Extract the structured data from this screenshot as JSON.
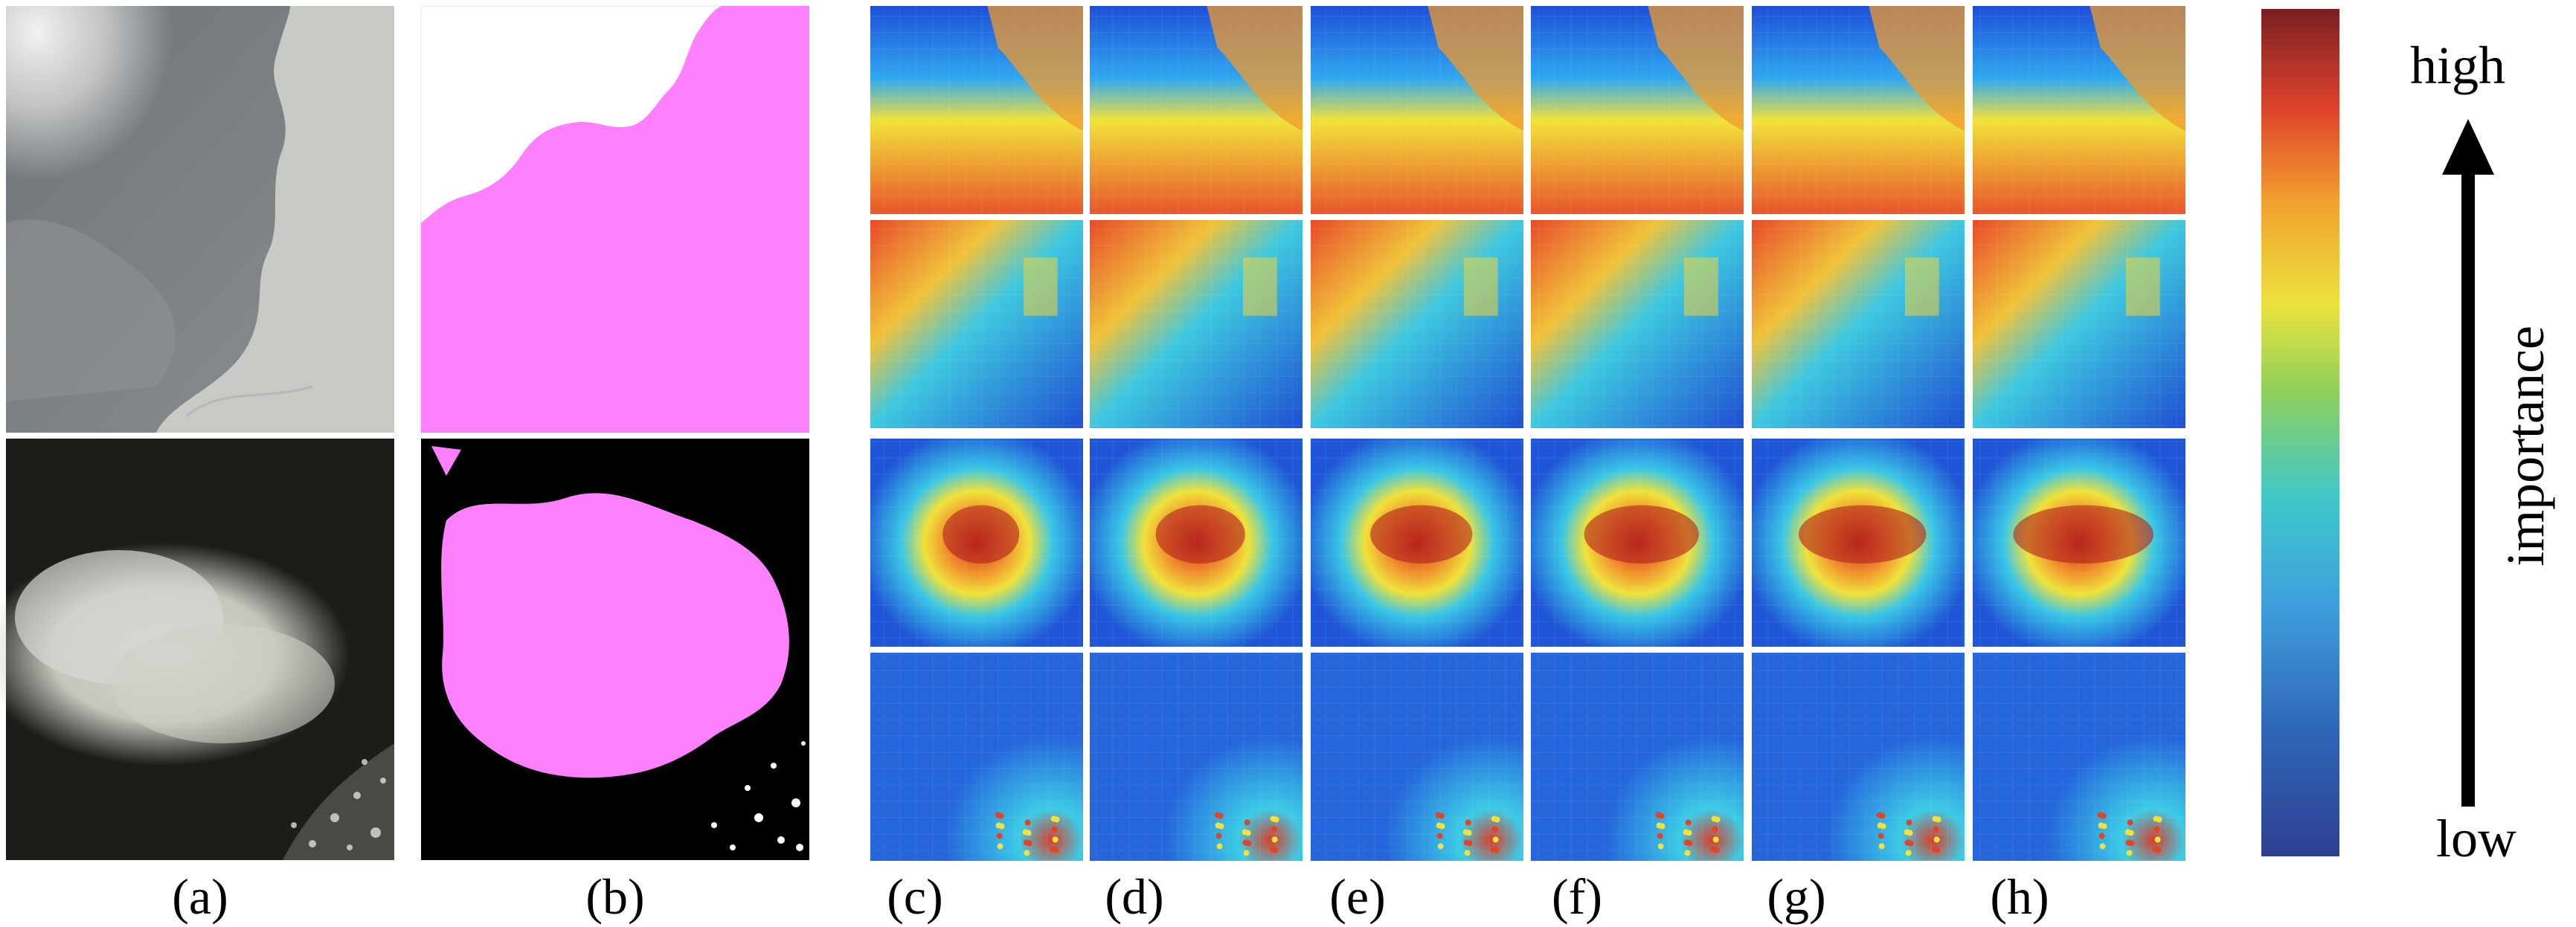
{
  "figure": {
    "captions": [
      "(a)",
      "(b)",
      "(c)",
      "(d)",
      "(e)",
      "(f)",
      "(g)",
      "(h)"
    ],
    "scale_labels": {
      "high": "high",
      "low": "low",
      "axis": "importance"
    },
    "colorbar_colors": [
      "#2d3f8f",
      "#2f66b8",
      "#3fa0dc",
      "#3fc7cc",
      "#8fd05a",
      "#ebe23f",
      "#f2a22f",
      "#e0442c",
      "#7a1e22"
    ],
    "mask_color": "#ff80ff",
    "rows": [
      {
        "description_image": "cloudy sky, light cloud on right",
        "mask_background": "#ffffff"
      },
      {
        "description_image": "bright cloud over dark ground",
        "mask_background": "#000000"
      }
    ]
  }
}
